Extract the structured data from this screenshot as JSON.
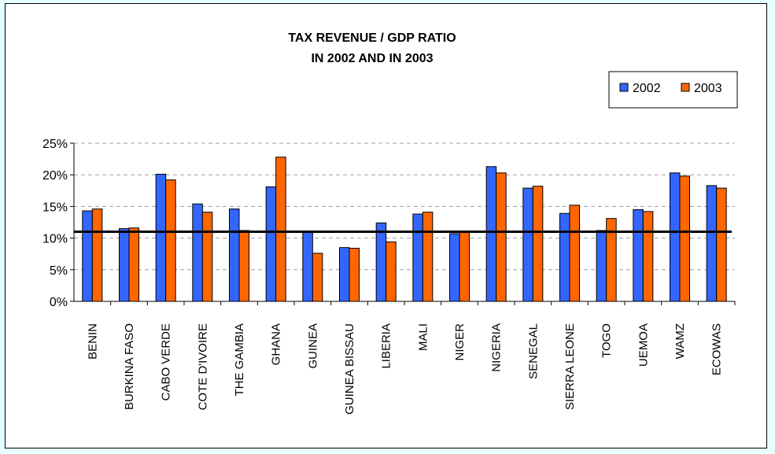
{
  "colors": {
    "page_background": "#e6ffff",
    "series_2002": "#3366ff",
    "series_2003": "#ff6600",
    "reference_line": "#000000",
    "gridline": "#a0a0a0"
  },
  "chart_data": {
    "type": "bar",
    "title": "TAX REVENUE / GDP RATIO",
    "subtitle": "IN 2002 AND IN 2003",
    "xlabel": "",
    "ylabel": "",
    "ylim": [
      0,
      0.25
    ],
    "yticks": [
      0,
      0.05,
      0.1,
      0.15,
      0.2,
      0.25
    ],
    "ytick_labels": [
      "0%",
      "5%",
      "10%",
      "15%",
      "20%",
      "25%"
    ],
    "grid": "horizontal dashed",
    "legend_position": "top-right",
    "categories": [
      "BENIN",
      "BURKINA FASO",
      "CABO VERDE",
      "COTE D'IVOIRE",
      "THE GAMBIA",
      "GHANA",
      "GUINEA",
      "GUINEA BISSAU",
      "LIBERIA",
      "MALI",
      "NIGER",
      "NIGERIA",
      "SENEGAL",
      "SIERRA LEONE",
      "TOGO",
      "UEMOA",
      "WAMZ",
      "ECOWAS"
    ],
    "series": [
      {
        "name": "2002",
        "color": "#3366ff",
        "values": [
          0.143,
          0.115,
          0.201,
          0.154,
          0.146,
          0.181,
          0.11,
          0.085,
          0.124,
          0.138,
          0.107,
          0.213,
          0.179,
          0.139,
          0.112,
          0.145,
          0.203,
          0.183
        ]
      },
      {
        "name": "2003",
        "color": "#ff6600",
        "values": [
          0.146,
          0.116,
          0.192,
          0.141,
          0.112,
          0.228,
          0.076,
          0.084,
          0.094,
          0.141,
          0.11,
          0.203,
          0.182,
          0.152,
          0.131,
          0.142,
          0.198,
          0.179
        ]
      }
    ],
    "reference_line": {
      "value": 0.11,
      "color": "#000000"
    }
  }
}
